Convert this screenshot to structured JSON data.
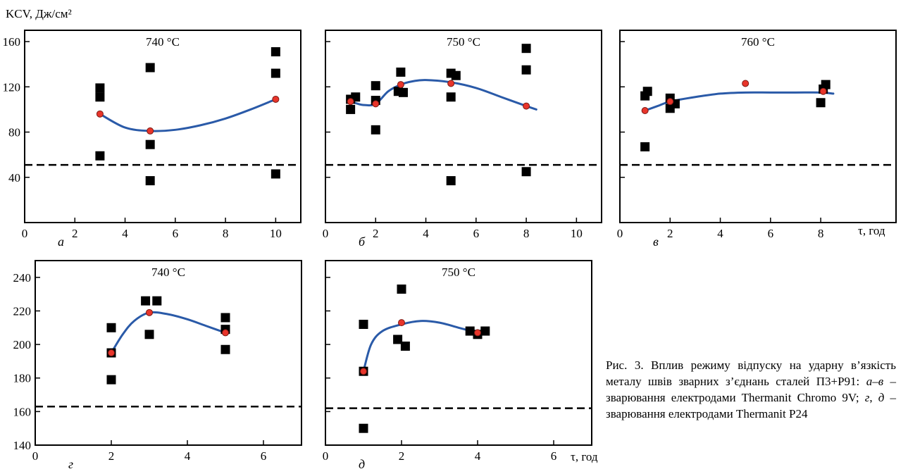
{
  "figure": {
    "y_axis_title": "KCV, Дж/см²",
    "x_axis_title_top": "τ, год",
    "x_axis_title_bottom": "τ, год",
    "caption": {
      "prefix": "Рис. 3. Вплив режиму відпуску на ударну в’язкість металу швів зварних з’єднань сталей П3+Р91: ",
      "range_abc": "а–в",
      "mid": " – зварювання електродами Thermanit Chromo 9V; ",
      "letter_g": "г",
      "comma": ", ",
      "letter_d": "д",
      "suffix": " – зварювання електродами Thermanit P24"
    }
  },
  "colors": {
    "curve": "#2a5aa8",
    "mean_marker": "#e8352b",
    "mean_marker_edge": "#7a1a14",
    "square": "#000000"
  },
  "chart_data": [
    {
      "type": "scatter",
      "panel_letter": "а",
      "temperature_label": "740 °C",
      "xlim": [
        0,
        11
      ],
      "ylim": [
        0,
        170
      ],
      "x_ticks": [
        0,
        2,
        4,
        6,
        8,
        10
      ],
      "y_ticks": [
        40,
        80,
        120,
        160
      ],
      "x_tick_labels": [
        "0",
        "2",
        "4",
        "6",
        "8",
        "10"
      ],
      "y_tick_labels": [
        "40",
        "80",
        "120",
        "160"
      ],
      "threshold": 51,
      "series": [
        {
          "points": [
            [
              3,
              119
            ],
            [
              3,
              111
            ],
            [
              3,
              59
            ],
            [
              5,
              137
            ],
            [
              5,
              69
            ],
            [
              5,
              37
            ],
            [
              10,
              151
            ],
            [
              10,
              132
            ],
            [
              10,
              43
            ]
          ]
        },
        {
          "points": [
            [
              3,
              96
            ],
            [
              5,
              81
            ],
            [
              10,
              109
            ]
          ]
        }
      ],
      "trend": [
        [
          3,
          96
        ],
        [
          4,
          84
        ],
        [
          5,
          81
        ],
        [
          6,
          82
        ],
        [
          7,
          86
        ],
        [
          8,
          92
        ],
        [
          9,
          100
        ],
        [
          10,
          109
        ]
      ]
    },
    {
      "type": "scatter",
      "panel_letter": "б",
      "temperature_label": "750 °C",
      "xlim": [
        0,
        11
      ],
      "ylim": [
        0,
        170
      ],
      "x_ticks": [
        0,
        2,
        4,
        6,
        8,
        10
      ],
      "y_ticks": [
        40,
        80,
        120,
        160
      ],
      "x_tick_labels": [
        "0",
        "2",
        "4",
        "6",
        "8",
        "10"
      ],
      "y_tick_labels": [],
      "threshold": 51,
      "series": [
        {
          "points": [
            [
              1,
              109
            ],
            [
              1.2,
              111
            ],
            [
              1,
              100
            ],
            [
              2,
              121
            ],
            [
              2,
              108
            ],
            [
              2,
              82
            ],
            [
              3,
              133
            ],
            [
              2.9,
              116
            ],
            [
              3.1,
              115
            ],
            [
              5,
              132
            ],
            [
              5.2,
              130
            ],
            [
              5,
              111
            ],
            [
              5,
              37
            ],
            [
              8,
              154
            ],
            [
              8,
              135
            ],
            [
              8,
              45
            ]
          ]
        },
        {
          "points": [
            [
              1,
              107
            ],
            [
              2,
              105
            ],
            [
              3,
              122
            ],
            [
              5,
              123
            ],
            [
              8,
              103
            ]
          ]
        }
      ],
      "trend": [
        [
          1,
          107
        ],
        [
          1.5,
          104
        ],
        [
          2,
          105
        ],
        [
          2.5,
          116
        ],
        [
          3,
          122
        ],
        [
          3.5,
          125
        ],
        [
          4,
          126
        ],
        [
          5,
          124
        ],
        [
          6,
          119
        ],
        [
          7,
          111
        ],
        [
          8,
          103
        ],
        [
          8.4,
          100
        ]
      ]
    },
    {
      "type": "scatter",
      "panel_letter": "в",
      "temperature_label": "760 °C",
      "xlim": [
        0,
        11
      ],
      "ylim": [
        0,
        170
      ],
      "x_ticks": [
        0,
        2,
        4,
        6,
        8
      ],
      "y_ticks": [
        40,
        80,
        120,
        160
      ],
      "x_tick_labels": [
        "0",
        "2",
        "4",
        "6",
        "8"
      ],
      "y_tick_labels": [],
      "threshold": 51,
      "series": [
        {
          "points": [
            [
              1,
              112
            ],
            [
              1.1,
              116
            ],
            [
              1,
              67
            ],
            [
              2,
              110
            ],
            [
              2,
              101
            ],
            [
              2.2,
              105
            ],
            [
              8,
              106
            ],
            [
              8.1,
              118
            ],
            [
              8.2,
              122
            ]
          ]
        },
        {
          "points": [
            [
              1,
              99
            ],
            [
              2,
              107
            ],
            [
              5,
              123
            ],
            [
              8.1,
              116
            ]
          ]
        }
      ],
      "trend": [
        [
          1,
          99
        ],
        [
          1.5,
          103
        ],
        [
          2,
          107
        ],
        [
          3,
          111
        ],
        [
          4,
          114
        ],
        [
          5,
          115
        ],
        [
          6,
          115
        ],
        [
          7,
          115
        ],
        [
          8,
          115
        ],
        [
          8.5,
          114
        ]
      ]
    },
    {
      "type": "scatter",
      "panel_letter": "г",
      "temperature_label": "740 °C",
      "xlim": [
        0,
        7
      ],
      "ylim": [
        140,
        250
      ],
      "x_ticks": [
        0,
        2,
        4,
        6
      ],
      "y_ticks": [
        140,
        160,
        180,
        200,
        220,
        240
      ],
      "x_tick_labels": [
        "0",
        "2",
        "4",
        "6"
      ],
      "y_tick_labels": [
        "140",
        "160",
        "180",
        "200",
        "220",
        "240"
      ],
      "threshold": 163,
      "series": [
        {
          "points": [
            [
              2,
              210
            ],
            [
              2,
              195
            ],
            [
              2,
              179
            ],
            [
              2.9,
              226
            ],
            [
              3.2,
              226
            ],
            [
              3,
              206
            ],
            [
              5,
              216
            ],
            [
              5,
              209
            ],
            [
              5,
              197
            ]
          ]
        },
        {
          "points": [
            [
              2,
              195
            ],
            [
              3,
              219
            ],
            [
              5,
              207
            ]
          ]
        }
      ],
      "trend": [
        [
          2,
          195
        ],
        [
          2.3,
          206
        ],
        [
          2.6,
          214
        ],
        [
          3,
          219
        ],
        [
          3.5,
          218
        ],
        [
          4,
          215
        ],
        [
          4.5,
          211
        ],
        [
          5,
          207
        ]
      ]
    },
    {
      "type": "scatter",
      "panel_letter": "д",
      "temperature_label": "750 °C",
      "xlim": [
        0,
        7
      ],
      "ylim": [
        140,
        250
      ],
      "x_ticks": [
        0,
        2,
        4,
        6
      ],
      "y_ticks": [
        140,
        160,
        180,
        200,
        220,
        240
      ],
      "x_tick_labels": [
        "0",
        "2",
        "4",
        "6"
      ],
      "y_tick_labels": [],
      "threshold": 162,
      "series": [
        {
          "points": [
            [
              1,
              212
            ],
            [
              1,
              184
            ],
            [
              1,
              150
            ],
            [
              2,
              233
            ],
            [
              1.9,
              203
            ],
            [
              2.1,
              199
            ],
            [
              3.8,
              208
            ],
            [
              4,
              206
            ],
            [
              4.2,
              208
            ]
          ]
        },
        {
          "points": [
            [
              1,
              184
            ],
            [
              2,
              213
            ],
            [
              4,
              207
            ]
          ]
        }
      ],
      "trend": [
        [
          1,
          184
        ],
        [
          1.2,
          200
        ],
        [
          1.5,
          208
        ],
        [
          2,
          212
        ],
        [
          2.5,
          214
        ],
        [
          3,
          213
        ],
        [
          3.5,
          210
        ],
        [
          4,
          207
        ]
      ]
    }
  ]
}
